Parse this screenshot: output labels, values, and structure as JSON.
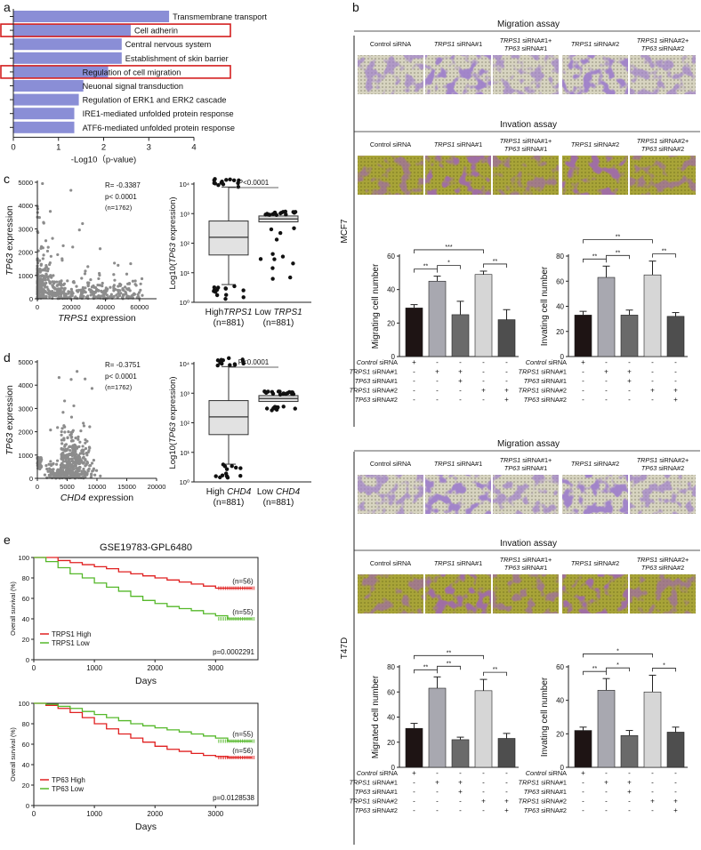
{
  "panel_labels": {
    "a": "a",
    "b": "b",
    "c": "c",
    "d": "d",
    "e": "e"
  },
  "chart_data": [
    {
      "id": "a",
      "type": "bar",
      "orientation": "horizontal",
      "categories": [
        "Transmembrane transport",
        "Cell adherin",
        "Central nervous system",
        "Establishment of skin barrier",
        "Regulation of cell migration",
        "Neuonal signal transduction",
        "Regulation of ERK1 and ERK2 cascade",
        "IRE1-mediated unfolded protein response",
        "ATF6-mediated unfolded protein response"
      ],
      "values": [
        3.45,
        2.6,
        2.4,
        2.4,
        2.1,
        1.55,
        1.45,
        1.35,
        1.35
      ],
      "highlighted": [
        "Cell adherin",
        "Regulation of cell migration"
      ],
      "xlabel": "-Log10（p-value)",
      "xticks": [
        "0",
        "1",
        "2",
        "3",
        "4"
      ],
      "xlim": [
        0,
        4
      ]
    },
    {
      "id": "c-scatter",
      "type": "scatter",
      "xlabel_gene": "TRPS1",
      "xlabel_suffix": " expression",
      "ylabel_gene": "TP63",
      "ylabel_suffix": " expression",
      "xticks": [
        "0",
        "20000",
        "40000",
        "60000"
      ],
      "yticks": [
        "0",
        "1000",
        "2000",
        "3000",
        "4000",
        "5000"
      ],
      "xlim": [
        0,
        70000
      ],
      "ylim": [
        0,
        5000
      ],
      "stats": {
        "r": "R= -0.3387",
        "p": "p< 0.0001",
        "n": "(n=1762)"
      }
    },
    {
      "id": "c-box",
      "type": "box",
      "ylabel": "Log10(TP63 expression)",
      "yticks": [
        "10⁴",
        "10³",
        "10²",
        "10¹",
        "10⁰"
      ],
      "pvalue": "P<0.0001",
      "groups": [
        {
          "label_pre": "High",
          "gene": "TRPS1",
          "n": "(n=881)"
        },
        {
          "label_pre": "Low ",
          "gene": "TRPS1",
          "n": "(n=881)"
        }
      ]
    },
    {
      "id": "d-scatter",
      "type": "scatter",
      "xlabel_gene": "CHD4",
      "xlabel_suffix": " expression",
      "ylabel_gene": "TP63",
      "ylabel_suffix": " expression",
      "xticks": [
        "0",
        "5000",
        "10000",
        "15000",
        "20000"
      ],
      "yticks": [
        "0",
        "1000",
        "2000",
        "3000",
        "4000",
        "5000"
      ],
      "xlim": [
        0,
        20000
      ],
      "ylim": [
        0,
        5000
      ],
      "stats": {
        "r": "R= -0.3751",
        "p": "p< 0.0001",
        "n": "(n=1762)"
      }
    },
    {
      "id": "d-box",
      "type": "box",
      "ylabel": "Log10(TP63 expression)",
      "yticks": [
        "10⁴",
        "10³",
        "10²",
        "10¹",
        "10⁰"
      ],
      "pvalue": "P<0.0001",
      "groups": [
        {
          "label_pre": "High ",
          "gene": "CHD4",
          "n": "(n=881)"
        },
        {
          "label_pre": "Low ",
          "gene": "CHD4",
          "n": "(n=881)"
        }
      ]
    },
    {
      "id": "e-top",
      "type": "line",
      "title": "GSE19783-GPL6480",
      "xlabel": "Days",
      "ylabel": "Overall survival (%)",
      "xticks": [
        "0",
        "1000",
        "2000",
        "3000"
      ],
      "yticks": [
        "0",
        "20",
        "40",
        "60",
        "80",
        "100"
      ],
      "xlim": [
        0,
        3700
      ],
      "ylim": [
        0,
        100
      ],
      "series": [
        {
          "name": "TRPS1 High",
          "color": "#e02020",
          "n": "(n=56)",
          "x": [
            0,
            200,
            400,
            600,
            800,
            1000,
            1200,
            1400,
            1600,
            1800,
            2000,
            2200,
            2400,
            2600,
            2800,
            3000,
            3600
          ],
          "y": [
            100,
            100,
            97,
            95,
            93,
            91,
            89,
            86,
            84,
            82,
            80,
            78,
            76,
            74,
            72,
            70,
            70
          ]
        },
        {
          "name": "TRPS1 Low",
          "color": "#55b82a",
          "n": "(n=55)",
          "x": [
            0,
            200,
            400,
            600,
            800,
            1000,
            1200,
            1400,
            1600,
            1800,
            2000,
            2200,
            2400,
            2600,
            2800,
            3000,
            3200,
            3600
          ],
          "y": [
            100,
            96,
            90,
            84,
            80,
            75,
            71,
            67,
            62,
            58,
            55,
            52,
            50,
            48,
            45,
            43,
            40,
            40
          ]
        }
      ],
      "pvalue": "p=0.0002291"
    },
    {
      "id": "e-bottom",
      "type": "line",
      "xlabel": "Days",
      "ylabel": "Overall survival (%)",
      "xticks": [
        "0",
        "1000",
        "2000",
        "3000"
      ],
      "yticks": [
        "0",
        "20",
        "40",
        "60",
        "80",
        "100"
      ],
      "xlim": [
        0,
        3700
      ],
      "ylim": [
        0,
        100
      ],
      "series": [
        {
          "name": "TP63 High",
          "color": "#e02020",
          "n": "(n=56)",
          "x": [
            0,
            200,
            400,
            600,
            800,
            1000,
            1200,
            1400,
            1600,
            1800,
            2000,
            2200,
            2400,
            2600,
            2800,
            3000,
            3200,
            3600
          ],
          "y": [
            100,
            98,
            95,
            91,
            86,
            80,
            75,
            70,
            66,
            62,
            58,
            55,
            53,
            51,
            49,
            48,
            47,
            47
          ]
        },
        {
          "name": "TP63 Low",
          "color": "#55b82a",
          "n": "(n=55)",
          "x": [
            0,
            200,
            400,
            600,
            800,
            1000,
            1200,
            1400,
            1600,
            1800,
            2000,
            2200,
            2400,
            2600,
            2800,
            3000,
            3200,
            3600
          ],
          "y": [
            100,
            99,
            97,
            95,
            92,
            89,
            86,
            83,
            80,
            78,
            76,
            74,
            72,
            70,
            68,
            66,
            63,
            63
          ]
        }
      ],
      "pvalue": "p=0.0128538"
    },
    {
      "id": "b-mcf7-migration",
      "type": "bar",
      "ylabel": "Migrating cell number",
      "yticks": [
        "0",
        "20",
        "40",
        "60"
      ],
      "ylim": [
        0,
        60
      ],
      "values": [
        29,
        45,
        25,
        49,
        22
      ],
      "errors": [
        2,
        3,
        8,
        2,
        6
      ],
      "sig": [
        [
          "**",
          0,
          1
        ],
        [
          "*",
          1,
          2
        ],
        [
          "***",
          0,
          3
        ],
        [
          "**",
          3,
          4
        ]
      ]
    },
    {
      "id": "b-mcf7-invasion",
      "type": "bar",
      "ylabel": "Invating cell number",
      "yticks": [
        "0",
        "20",
        "40",
        "60",
        "80"
      ],
      "ylim": [
        0,
        80
      ],
      "values": [
        33,
        63,
        33,
        65,
        32
      ],
      "errors": [
        3,
        9,
        4,
        11,
        3
      ],
      "sig": [
        [
          "**",
          0,
          1
        ],
        [
          "**",
          1,
          2
        ],
        [
          "**",
          0,
          3
        ],
        [
          "**",
          3,
          4
        ]
      ]
    },
    {
      "id": "b-t47d-migration",
      "type": "bar",
      "ylabel": "Migrated cell number",
      "yticks": [
        "0",
        "20",
        "40",
        "60",
        "80"
      ],
      "ylim": [
        0,
        80
      ],
      "values": [
        31,
        63,
        22,
        61,
        23
      ],
      "errors": [
        4,
        9,
        2,
        9,
        4
      ],
      "sig": [
        [
          "**",
          0,
          1
        ],
        [
          "**",
          1,
          2
        ],
        [
          "**",
          0,
          3
        ],
        [
          "**",
          3,
          4
        ]
      ]
    },
    {
      "id": "b-t47d-invasion",
      "type": "bar",
      "ylabel": "Invating cell number",
      "yticks": [
        "0",
        "20",
        "40",
        "60"
      ],
      "ylim": [
        0,
        60
      ],
      "values": [
        22,
        46,
        19,
        45,
        21
      ],
      "errors": [
        2,
        7,
        3,
        10,
        3
      ],
      "sig": [
        [
          "**",
          0,
          1
        ],
        [
          "*",
          1,
          2
        ],
        [
          "*",
          0,
          3
        ],
        [
          "*",
          3,
          4
        ]
      ]
    }
  ],
  "treatments": {
    "rows": [
      {
        "gene": "Control",
        "rest": " siRNA",
        "marks": [
          "+",
          "-",
          "-",
          "-",
          "-"
        ]
      },
      {
        "gene": "TRPS1",
        "rest": " siRNA#1",
        "marks": [
          "-",
          "+",
          "+",
          "-",
          "-"
        ]
      },
      {
        "gene": "TP63",
        "rest": " siRNA#1",
        "marks": [
          "-",
          "-",
          "+",
          "-",
          "-"
        ]
      },
      {
        "gene": "TRPS1",
        "rest": " siRNA#2",
        "marks": [
          "-",
          "-",
          "-",
          "+",
          "+"
        ]
      },
      {
        "gene": "TP63",
        "rest": " siRNA#2",
        "marks": [
          "-",
          "-",
          "-",
          "-",
          "+"
        ]
      }
    ]
  },
  "panel_b": {
    "cell_lines": [
      "MCF7",
      "T47D"
    ],
    "assays": {
      "migration": "Migration assay",
      "invasion": "Invation assay"
    },
    "columns": [
      {
        "l1": "Control siRNA",
        "l2": ""
      },
      {
        "l1": "TRPS1 siRNA#1",
        "l2": ""
      },
      {
        "l1": "TRPS1 siRNA#1+",
        "l2": "TP63 siRNA#1"
      },
      {
        "l1": "TRPS1 siRNA#2",
        "l2": ""
      },
      {
        "l1": "TRPS1 siRNA#2+",
        "l2": "TP63 siRNA#2"
      }
    ]
  }
}
